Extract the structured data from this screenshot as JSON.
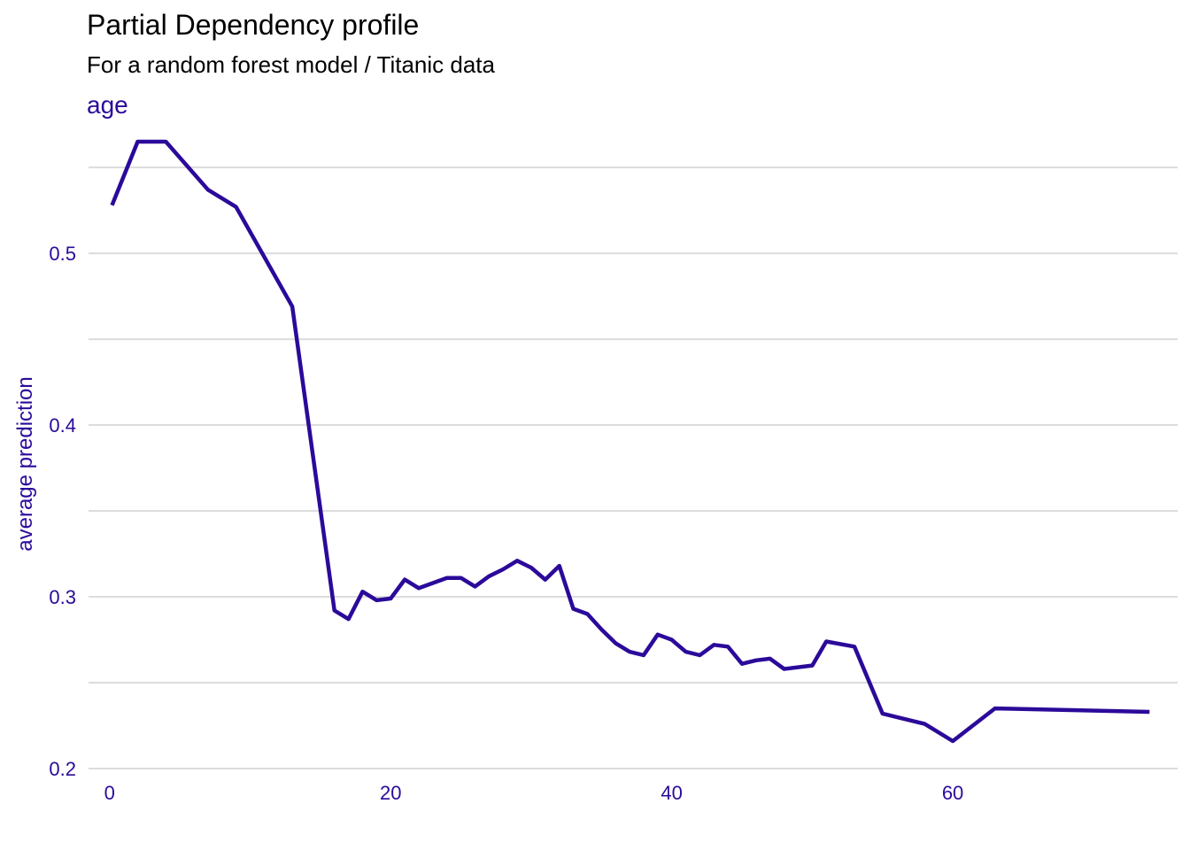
{
  "chart_data": {
    "type": "line",
    "title": "Partial Dependency profile",
    "subtitle": "For a random forest model / Titanic data",
    "facet_label": "age",
    "xlabel": "",
    "ylabel": "average prediction",
    "xlim": [
      -1.5,
      76
    ],
    "ylim": [
      0.2,
      0.565
    ],
    "x_ticks": [
      0,
      20,
      40,
      60
    ],
    "y_ticks": [
      0.2,
      0.3,
      0.4,
      0.5
    ],
    "y_tick_labels": [
      "0.2",
      "0.3",
      "0.4",
      "0.5"
    ],
    "y_minor_gridlines": [
      0.25,
      0.35,
      0.45,
      0.55
    ],
    "grid": true,
    "legend": "none",
    "colors": {
      "line": "#2b0a9a",
      "text": "#2b0a9a",
      "grid": "#dcdcdc"
    },
    "series": [
      {
        "x": [
          0.17,
          2,
          4,
          7,
          9,
          13,
          16,
          17,
          18,
          19,
          20,
          21,
          22,
          24,
          25,
          26,
          27,
          28,
          29,
          30,
          31,
          32,
          33,
          34,
          35,
          36,
          37,
          38,
          39,
          40,
          41,
          42,
          43,
          44,
          45,
          46,
          47,
          48,
          50,
          51,
          53,
          55,
          58,
          60,
          63,
          74
        ],
        "y": [
          0.528,
          0.565,
          0.565,
          0.537,
          0.527,
          0.469,
          0.292,
          0.287,
          0.303,
          0.298,
          0.299,
          0.31,
          0.305,
          0.311,
          0.311,
          0.306,
          0.312,
          0.316,
          0.321,
          0.317,
          0.31,
          0.318,
          0.293,
          0.29,
          0.281,
          0.273,
          0.268,
          0.266,
          0.278,
          0.275,
          0.268,
          0.266,
          0.272,
          0.271,
          0.261,
          0.263,
          0.264,
          0.258,
          0.26,
          0.274,
          0.271,
          0.232,
          0.226,
          0.216,
          0.235,
          0.233
        ]
      }
    ]
  }
}
